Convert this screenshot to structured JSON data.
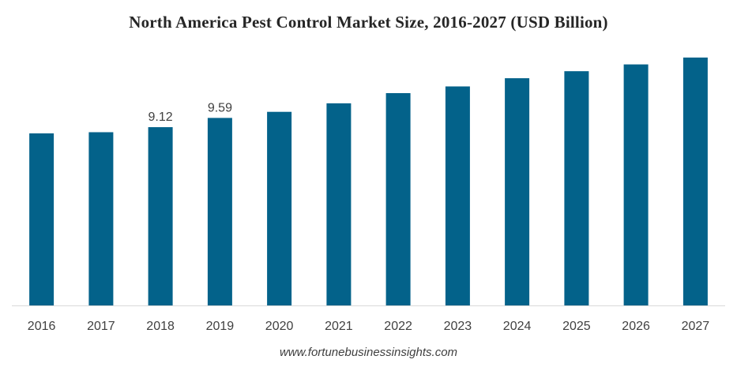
{
  "chart_data": {
    "type": "bar",
    "title": "North America Pest Control Market Size, 2016-2027 (USD Billion)",
    "categories": [
      "2016",
      "2017",
      "2018",
      "2019",
      "2020",
      "2021",
      "2022",
      "2023",
      "2024",
      "2025",
      "2026",
      "2027"
    ],
    "values": [
      8.8,
      8.86,
      9.12,
      9.59,
      9.9,
      10.34,
      10.86,
      11.2,
      11.62,
      11.98,
      12.33,
      12.68
    ],
    "data_labels": [
      null,
      null,
      "9.12",
      "9.59",
      null,
      null,
      null,
      null,
      null,
      null,
      null,
      null
    ],
    "ylim": [
      0,
      13.2
    ],
    "xlabel": "",
    "ylabel": "",
    "bar_color": "#03628a",
    "grid": false,
    "legend": "none"
  },
  "footer": {
    "source": "www.fortunebusinessinsights.com"
  }
}
